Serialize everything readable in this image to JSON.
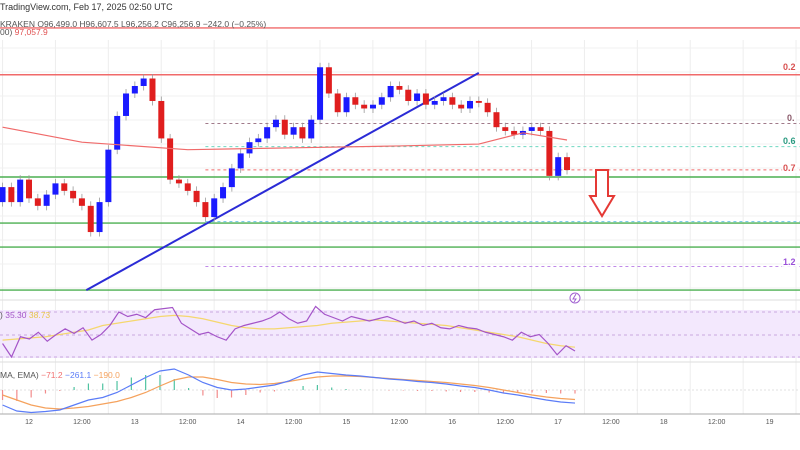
{
  "header": {
    "source": "TradingView.com, Feb 17, 2025 02:50 UTC",
    "exchange": "KRAKEN",
    "open": "O96,499.0",
    "high": "H96,607.5",
    "low": "L96,256.2",
    "close": "C96,256.9",
    "change": "−242.0 (−0.25%)",
    "ma_label": "00)",
    "ma_value": "97,057.9"
  },
  "rsi_legend": {
    "label": ")",
    "rsi": "35.30",
    "ma": "38.73"
  },
  "macd_legend": {
    "label": "MA, EMA)",
    "hist": "−71.2",
    "macd": "−261.1",
    "signal": "−190.0"
  },
  "fib_labels": [
    "0.2",
    "0.",
    "0.6",
    "0.7",
    "1.2"
  ],
  "colors": {
    "up": "#1a1aff",
    "down": "#e01e1e",
    "ma": "#f06a6a",
    "trend": "#2b2bd6",
    "support": "#4caf50",
    "rsi": "#a454c8",
    "rsi_ma": "#f5d76e",
    "macd": "#5b7cf7",
    "signal": "#f5a25d"
  },
  "chart_data": {
    "type": "candlestick",
    "timeframe_hours": 2,
    "start": "2025-02-11T18:00",
    "closes": [
      95800,
      95400,
      96000,
      95500,
      95300,
      95600,
      95900,
      95700,
      95500,
      95300,
      94600,
      95400,
      96800,
      97700,
      98300,
      98500,
      98700,
      98100,
      97100,
      96000,
      95900,
      95700,
      95400,
      95000,
      95500,
      95800,
      96300,
      96700,
      97000,
      97100,
      97400,
      97600,
      97200,
      97400,
      97100,
      97600,
      99000,
      98300,
      97800,
      98200,
      98000,
      97900,
      98000,
      98200,
      98500,
      98400,
      98100,
      98300,
      98000,
      98100,
      98200,
      98000,
      97900,
      98100,
      98050,
      97800,
      97400,
      97300,
      97200,
      97300,
      97400,
      97300,
      96100,
      96600,
      96257
    ],
    "first_open": 95400,
    "ma_100": [
      [
        "2025-02-11T18:00",
        97400
      ],
      [
        "2025-02-12T12:00",
        97000
      ],
      [
        "2025-02-13T12:00",
        96800
      ],
      [
        "2025-02-14T12:00",
        96850
      ],
      [
        "2025-02-15T12:00",
        96900
      ],
      [
        "2025-02-16T06:00",
        96950
      ],
      [
        "2025-02-16T16:00",
        97250
      ],
      [
        "2025-02-17T02:00",
        97058
      ]
    ],
    "horizontal_lines": [
      {
        "price": 100050,
        "color": "#f06a6a",
        "style": "solid"
      },
      {
        "price": 98800,
        "color": "#f06a6a",
        "style": "solid"
      },
      {
        "price": 96070,
        "color": "#4caf50",
        "style": "solid"
      },
      {
        "price": 94840,
        "color": "#4caf50",
        "style": "solid"
      },
      {
        "price": 94200,
        "color": "#4caf50",
        "style": "solid"
      },
      {
        "price": 93050,
        "color": "#4caf50",
        "style": "solid"
      }
    ],
    "fib_levels": [
      {
        "label_index": 1,
        "price": 97500,
        "color": "#a07a8a"
      },
      {
        "label_index": 2,
        "price": 96880,
        "color": "#6fd8c0"
      },
      {
        "label_index": 3,
        "price": 96260,
        "color": "#f06a6a"
      },
      {
        "label_index": -1,
        "price": 94880,
        "color": "#6cc4e8"
      },
      {
        "label_index": 4,
        "price": 93680,
        "color": "#c08ae8"
      }
    ],
    "fib_start": "2025-02-13T16:00",
    "trendline": [
      [
        "2025-02-12T13:00",
        93050
      ],
      [
        "2025-02-16T06:00",
        98850
      ]
    ],
    "rsi": [
      42,
      30,
      48,
      46,
      52,
      44,
      50,
      55,
      51,
      56,
      45,
      50,
      58,
      70,
      66,
      68,
      65,
      72,
      73,
      74,
      60,
      55,
      50,
      52,
      48,
      45,
      55,
      58,
      60,
      62,
      65,
      70,
      64,
      60,
      62,
      75,
      68,
      65,
      62,
      66,
      64,
      62,
      64,
      66,
      63,
      60,
      62,
      58,
      60,
      56,
      55,
      58,
      56,
      55,
      52,
      50,
      48,
      45,
      52,
      48,
      50,
      42,
      32,
      40,
      35.3
    ],
    "rsi_ma": [
      45,
      46,
      47,
      48,
      50,
      52,
      54,
      58,
      60,
      62,
      64,
      66,
      67,
      66,
      64,
      61,
      58,
      56,
      55,
      55,
      56,
      57,
      58,
      60,
      61,
      62,
      63,
      62,
      61,
      60,
      59,
      58,
      56,
      54,
      52,
      50,
      48,
      45,
      42,
      40,
      38.73
    ],
    "macd": [
      -300,
      -420,
      -450,
      -430,
      -400,
      -300,
      -200,
      -150,
      -50,
      100,
      250,
      380,
      420,
      300,
      150,
      50,
      0,
      20,
      60,
      100,
      180,
      300,
      360,
      330,
      300,
      280,
      250,
      220,
      200,
      170,
      150,
      120,
      80,
      50,
      0,
      -60,
      -100,
      -150,
      -200,
      -240,
      -261.1
    ],
    "signal": [
      -100,
      -200,
      -300,
      -360,
      -380,
      -360,
      -330,
      -280,
      -230,
      -150,
      -50,
      80,
      200,
      260,
      260,
      210,
      150,
      120,
      110,
      130,
      170,
      220,
      260,
      280,
      280,
      270,
      250,
      230,
      210,
      190,
      170,
      150,
      120,
      90,
      50,
      0,
      -50,
      -100,
      -140,
      -170,
      -190.0
    ],
    "x_ticks": [
      "12",
      "12:00",
      "13",
      "12:00",
      "14",
      "12:00",
      "15",
      "12:00",
      "16",
      "12:00",
      "17",
      "12:00",
      "18",
      "12:00",
      "19"
    ]
  }
}
